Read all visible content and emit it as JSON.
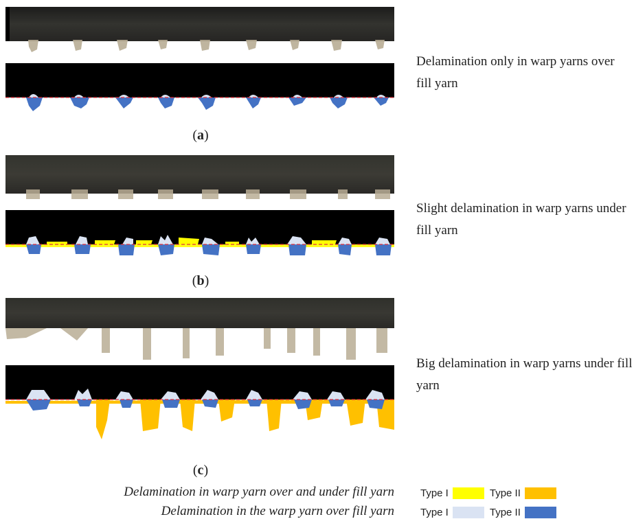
{
  "panels": [
    {
      "label_open": "(",
      "label_letter": "a",
      "label_close": ")",
      "description": "Delamination only in warp yarns over fill yarn"
    },
    {
      "label_open": "(",
      "label_letter": "b",
      "label_close": ")",
      "description": "Slight delamination in warp yarns under fill yarn"
    },
    {
      "label_open": "(",
      "label_letter": "c",
      "label_close": ")",
      "description": "Big delamination in warp yarns under fill yarn"
    }
  ],
  "legend": {
    "rows": [
      {
        "caption": "Delamination in warp yarn over and under fill yarn",
        "type1": "Type I",
        "type2": "Type II",
        "type1_color": "#ffff00",
        "type2_color": "#ffc000"
      },
      {
        "caption": "Delamination in the warp yarn over fill yarn",
        "type1": "Type I",
        "type2": "Type II",
        "type1_color": "#dae3f3",
        "type2_color": "#4472c4"
      }
    ]
  },
  "colors": {
    "baseline": "#e0303a",
    "background": "#000000",
    "photo": "#2b2b2a",
    "fiber": "#b9ad95"
  }
}
